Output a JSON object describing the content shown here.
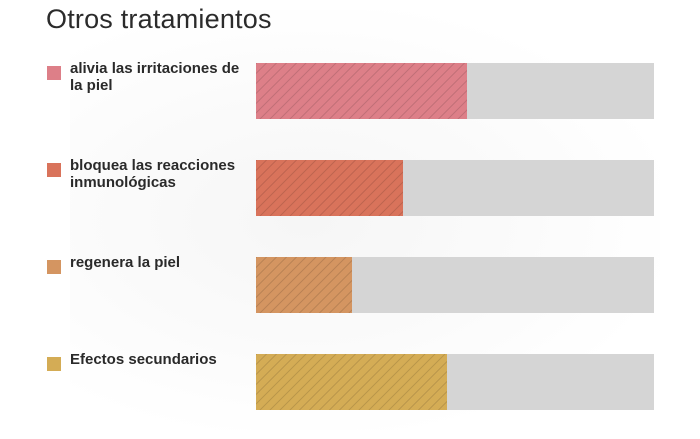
{
  "title": "Otros tratamientos",
  "chart_data": {
    "type": "bar",
    "orientation": "horizontal",
    "title": "Otros tratamientos",
    "xlim": [
      0,
      100
    ],
    "grid": false,
    "categories": [
      "alivia las irritaciones de la piel",
      "bloquea las reacciones inmunológicas",
      "regenera la piel",
      "Efectos secundarios"
    ],
    "values": [
      53,
      37,
      24,
      48
    ],
    "colors": [
      "#dd7f88",
      "#d9735b",
      "#d49561",
      "#d4ac55"
    ],
    "track_color": "#d5d5d5"
  }
}
